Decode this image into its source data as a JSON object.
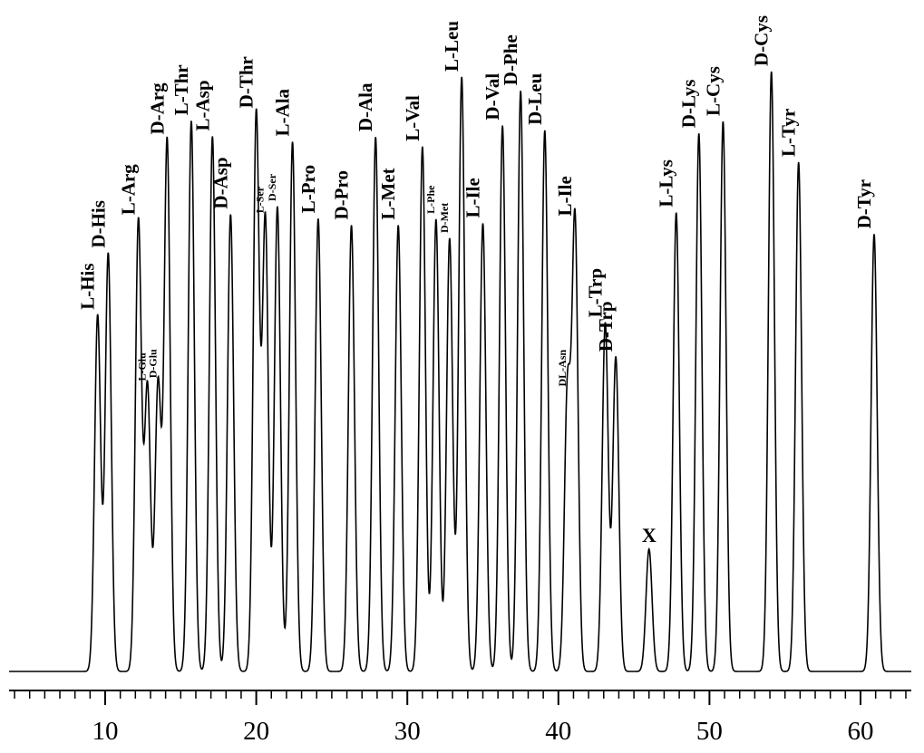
{
  "chart_data": {
    "type": "line",
    "title": "",
    "xlabel": "",
    "ylabel": "",
    "xlim": [
      3.5,
      63.5
    ],
    "ylim": [
      0,
      1.0
    ],
    "grid": false,
    "legend": "none",
    "x_ticks": [
      10,
      20,
      30,
      40,
      50,
      60
    ],
    "x_tick_labels": [
      "10",
      "20",
      "30",
      "40",
      "50",
      "60"
    ],
    "minor_tick_step": 1,
    "line_color": "#000000",
    "baseline": 0.0,
    "peaks": [
      {
        "label": "L-His",
        "rt": 9.5,
        "height": 0.594,
        "size": "large"
      },
      {
        "label": "D-His",
        "rt": 10.2,
        "height": 0.697,
        "size": "large"
      },
      {
        "label": "L-Arg",
        "rt": 12.2,
        "height": 0.752,
        "size": "large"
      },
      {
        "label": "L-Glu",
        "rt": 12.8,
        "height": 0.475,
        "size": "small"
      },
      {
        "label": "D-Glu",
        "rt": 13.5,
        "height": 0.48,
        "size": "small"
      },
      {
        "label": "D-Arg",
        "rt": 14.1,
        "height": 0.886,
        "size": "large"
      },
      {
        "label": "L-Thr",
        "rt": 15.7,
        "height": 0.918,
        "size": "large"
      },
      {
        "label": "L-Asp",
        "rt": 17.1,
        "height": 0.892,
        "size": "large"
      },
      {
        "label": "D-Asp",
        "rt": 18.3,
        "height": 0.762,
        "size": "large"
      },
      {
        "label": "D-Thr",
        "rt": 20.0,
        "height": 0.93,
        "size": "large"
      },
      {
        "label": "L-Ser",
        "rt": 20.6,
        "height": 0.755,
        "size": "small"
      },
      {
        "label": "D-Ser",
        "rt": 21.4,
        "height": 0.775,
        "size": "small"
      },
      {
        "label": "L-Ala",
        "rt": 22.4,
        "height": 0.883,
        "size": "large"
      },
      {
        "label": "L-Pro",
        "rt": 24.1,
        "height": 0.755,
        "size": "large"
      },
      {
        "label": "D-Pro",
        "rt": 26.3,
        "height": 0.744,
        "size": "large"
      },
      {
        "label": "D-Ala",
        "rt": 27.9,
        "height": 0.891,
        "size": "large"
      },
      {
        "label": "L-Met",
        "rt": 29.4,
        "height": 0.744,
        "size": "large"
      },
      {
        "label": "L-Val",
        "rt": 31.0,
        "height": 0.875,
        "size": "large"
      },
      {
        "label": "L-Phe",
        "rt": 31.9,
        "height": 0.754,
        "size": "small"
      },
      {
        "label": "D-Met",
        "rt": 32.8,
        "height": 0.722,
        "size": "small"
      },
      {
        "label": "L-Leu",
        "rt": 33.6,
        "height": 0.991,
        "size": "large"
      },
      {
        "label": "L-Ile",
        "rt": 35.0,
        "height": 0.747,
        "size": "large"
      },
      {
        "label": "D-Val",
        "rt": 36.3,
        "height": 0.91,
        "size": "large"
      },
      {
        "label": "D-Phe",
        "rt": 37.5,
        "height": 0.968,
        "size": "large"
      },
      {
        "label": "D-Leu",
        "rt": 39.1,
        "height": 0.902,
        "size": "large"
      },
      {
        "label": "DL-Asn",
        "rt": 40.6,
        "height": 0.466,
        "size": "small"
      },
      {
        "label": "L-Ile",
        "rt": 41.1,
        "height": 0.75,
        "size": "large"
      },
      {
        "label": "L-Trp",
        "rt": 43.1,
        "height": 0.581,
        "size": "large"
      },
      {
        "label": "D-Trp",
        "rt": 43.8,
        "height": 0.524,
        "size": "large"
      },
      {
        "label": "X",
        "rt": 46.0,
        "height": 0.204,
        "size": "large"
      },
      {
        "label": "L-Lys",
        "rt": 47.8,
        "height": 0.765,
        "size": "large"
      },
      {
        "label": "D-Lys",
        "rt": 49.3,
        "height": 0.897,
        "size": "large"
      },
      {
        "label": "L-Cys",
        "rt": 50.9,
        "height": 0.917,
        "size": "large"
      },
      {
        "label": "D-Cys",
        "rt": 54.1,
        "height": 1.0,
        "size": "large"
      },
      {
        "label": "L-Tyr",
        "rt": 55.9,
        "height": 0.849,
        "size": "large"
      },
      {
        "label": "D-Tyr",
        "rt": 60.9,
        "height": 0.729,
        "size": "large"
      }
    ]
  }
}
